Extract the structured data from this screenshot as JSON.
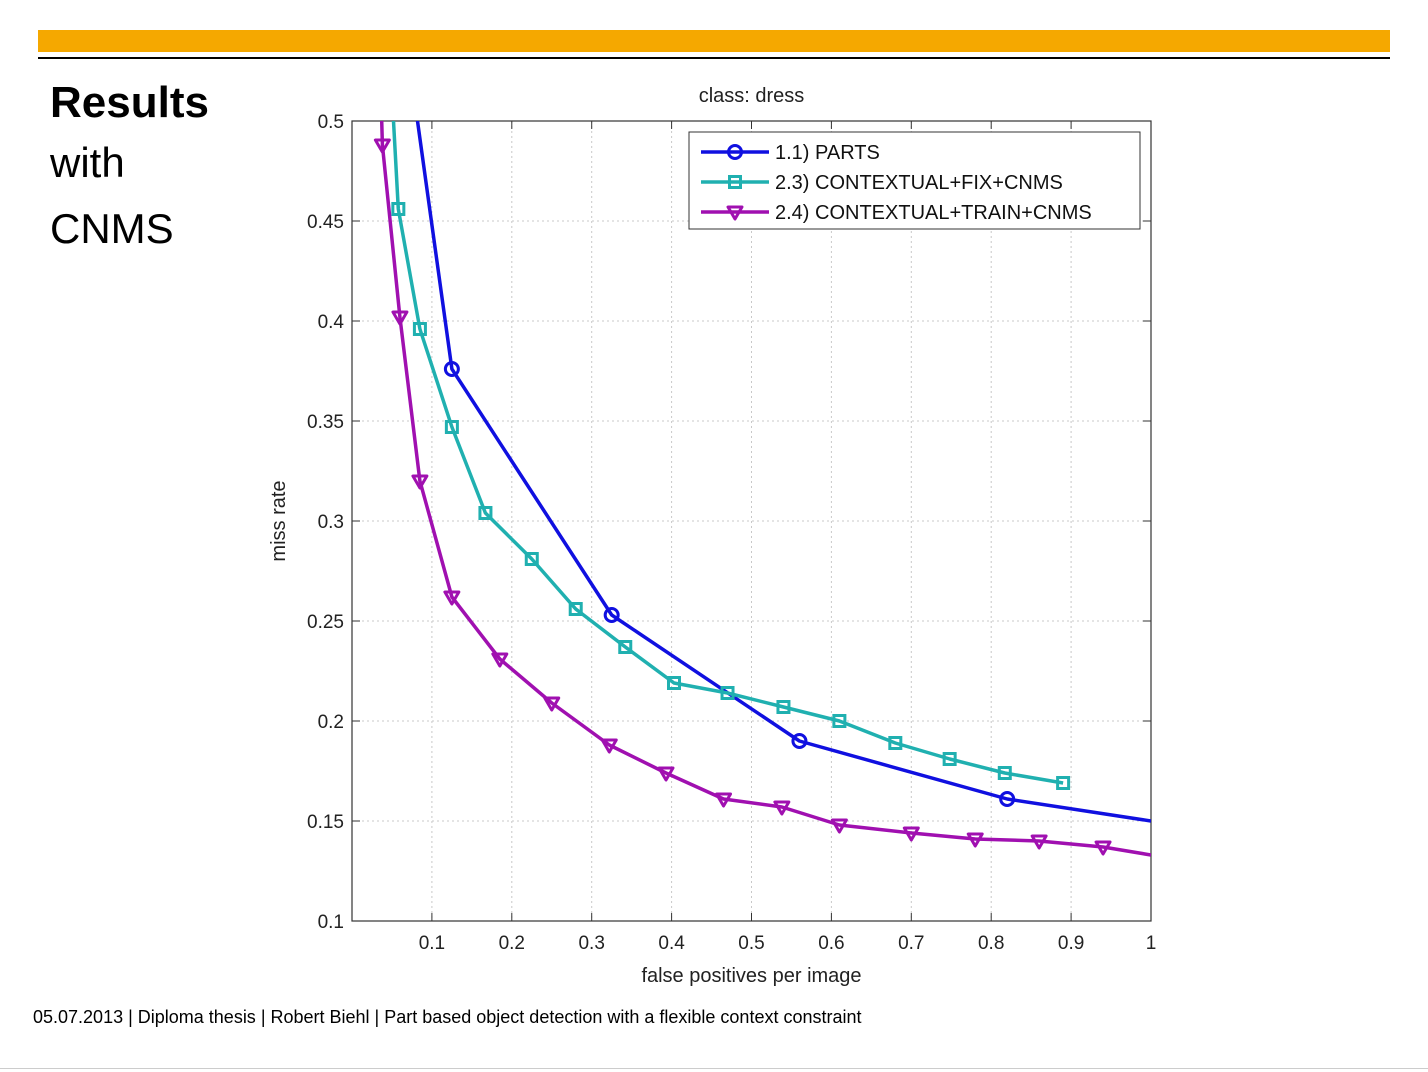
{
  "slide": {
    "title_line1": "Results",
    "title_line2": "with",
    "title_line3": "CNMS",
    "footer": "05.07.2013 | Diploma thesis | Robert Biehl | Part based object detection with a flexible context constraint",
    "accent_color": "#f5a800"
  },
  "chart_data": {
    "type": "line",
    "title": "class: dress",
    "xlabel": "false positives per image",
    "ylabel": "miss rate",
    "xlim": [
      0,
      1
    ],
    "ylim": [
      0.1,
      0.5
    ],
    "xticks": [
      0.1,
      0.2,
      0.3,
      0.4,
      0.5,
      0.6,
      0.7,
      0.8,
      0.9,
      1
    ],
    "xtick_labels": [
      "0.1",
      "0.2",
      "0.3",
      "0.4",
      "0.5",
      "0.6",
      "0.7",
      "0.8",
      "0.9",
      "1"
    ],
    "yticks": [
      0.1,
      0.15,
      0.2,
      0.25,
      0.3,
      0.35,
      0.4,
      0.45,
      0.5
    ],
    "ytick_labels": [
      "0.1",
      "0.15",
      "0.2",
      "0.25",
      "0.3",
      "0.35",
      "0.4",
      "0.45",
      "0.5"
    ],
    "grid": true,
    "legend_position": "top-right",
    "series": [
      {
        "name": "1.1) PARTS",
        "color": "#1010e0",
        "marker": "circle",
        "x": [
          0.07,
          0.082,
          0.125,
          0.325,
          0.56,
          0.82,
          1.0
        ],
        "y": [
          0.55,
          0.5,
          0.376,
          0.253,
          0.19,
          0.161,
          0.15
        ],
        "marker_x": [
          0.125,
          0.325,
          0.56,
          0.82
        ],
        "marker_y": [
          0.376,
          0.253,
          0.19,
          0.161
        ]
      },
      {
        "name": "2.3) CONTEXTUAL+FIX+CNMS",
        "color": "#20b0b0",
        "marker": "square",
        "x": [
          0.04,
          0.052,
          0.058,
          0.085,
          0.125,
          0.167,
          0.225,
          0.28,
          0.342,
          0.403,
          0.47,
          0.54,
          0.61,
          0.68,
          0.748,
          0.817,
          0.89
        ],
        "y": [
          0.55,
          0.5,
          0.456,
          0.396,
          0.347,
          0.304,
          0.281,
          0.256,
          0.237,
          0.219,
          0.214,
          0.207,
          0.2,
          0.189,
          0.181,
          0.174,
          0.169
        ],
        "marker_x": [
          0.058,
          0.085,
          0.125,
          0.167,
          0.225,
          0.28,
          0.342,
          0.403,
          0.47,
          0.54,
          0.61,
          0.68,
          0.748,
          0.817,
          0.89
        ],
        "marker_y": [
          0.456,
          0.396,
          0.347,
          0.304,
          0.281,
          0.256,
          0.237,
          0.219,
          0.214,
          0.207,
          0.2,
          0.189,
          0.181,
          0.174,
          0.169
        ]
      },
      {
        "name": "2.4) CONTEXTUAL+TRAIN+CNMS",
        "color": "#a010b0",
        "marker": "triangle-down",
        "x": [
          0.035,
          0.038,
          0.06,
          0.085,
          0.125,
          0.185,
          0.25,
          0.322,
          0.393,
          0.465,
          0.538,
          0.61,
          0.7,
          0.78,
          0.86,
          0.94,
          1.0
        ],
        "y": [
          0.53,
          0.488,
          0.402,
          0.32,
          0.262,
          0.231,
          0.209,
          0.188,
          0.174,
          0.161,
          0.157,
          0.148,
          0.144,
          0.141,
          0.14,
          0.137,
          0.133
        ],
        "marker_x": [
          0.038,
          0.06,
          0.085,
          0.125,
          0.185,
          0.25,
          0.322,
          0.393,
          0.465,
          0.538,
          0.61,
          0.7,
          0.78,
          0.86,
          0.94
        ],
        "marker_y": [
          0.488,
          0.402,
          0.32,
          0.262,
          0.231,
          0.209,
          0.188,
          0.174,
          0.161,
          0.157,
          0.148,
          0.144,
          0.141,
          0.14,
          0.137
        ]
      }
    ]
  }
}
